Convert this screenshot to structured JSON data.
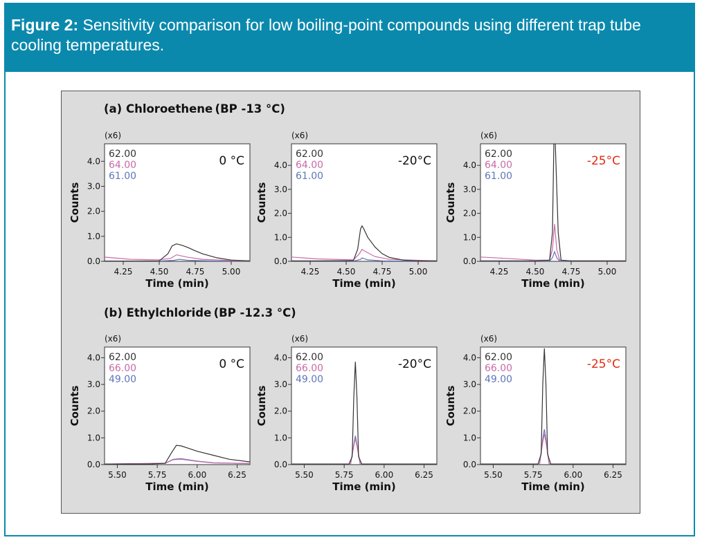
{
  "figure": {
    "label": "Figure 2:",
    "caption": " Sensitivity comparison for low boiling-point compounds using different trap tube cooling temperatures."
  },
  "colors": {
    "header": "#0b89ad",
    "ion1": "#333333",
    "ion2": "#c86aa6",
    "ion3": "#5f76b8",
    "red": "#e02a10"
  },
  "sections": [
    {
      "title": "(a) Chloroethene (BP -13 °C)"
    },
    {
      "title": "(b) Ethylchloride (BP -12.3 °C)"
    }
  ],
  "chart_data": [
    {
      "type": "line",
      "title": "0 °C",
      "title_color": "#111111",
      "scale": "(x6)",
      "xlabel": "Time (min)",
      "ylabel": "Counts",
      "xlim": [
        4.12,
        5.13
      ],
      "ylim": [
        0,
        4.7
      ],
      "xticks": [
        4.25,
        4.5,
        4.75,
        5.0
      ],
      "xticklabels": [
        "4.25",
        "4.50",
        "4.75",
        "5.00"
      ],
      "yticks": [
        0,
        1,
        2,
        3,
        4
      ],
      "yticklabels": [
        "0.0",
        "1.0",
        "2.0",
        "3.0",
        "4.0"
      ],
      "legend": [
        "62.00",
        "64.00",
        "61.00"
      ],
      "series": [
        {
          "name": "62.00",
          "color": "#333333",
          "x": [
            4.12,
            4.3,
            4.5,
            4.56,
            4.59,
            4.62,
            4.66,
            4.7,
            4.75,
            4.8,
            4.9,
            5.0,
            5.13
          ],
          "y": [
            0.01,
            0.01,
            0.02,
            0.3,
            0.62,
            0.7,
            0.64,
            0.55,
            0.42,
            0.3,
            0.14,
            0.05,
            0.02
          ]
        },
        {
          "name": "64.00",
          "color": "#c86aa6",
          "x": [
            4.12,
            4.3,
            4.5,
            4.58,
            4.62,
            4.7,
            4.8,
            5.0,
            5.13
          ],
          "y": [
            0.17,
            0.08,
            0.06,
            0.12,
            0.26,
            0.16,
            0.08,
            0.03,
            0.02
          ]
        },
        {
          "name": "61.00",
          "color": "#5f76b8",
          "x": [
            4.12,
            4.5,
            4.6,
            4.64,
            4.7,
            4.9,
            5.13
          ],
          "y": [
            0.01,
            0.01,
            0.04,
            0.08,
            0.04,
            0.01,
            0.01
          ]
        }
      ]
    },
    {
      "type": "line",
      "title": "-20°C",
      "title_color": "#111111",
      "scale": "(x6)",
      "xlabel": "Time (min)",
      "ylabel": "Counts",
      "xlim": [
        4.12,
        5.13
      ],
      "ylim": [
        0,
        4.9
      ],
      "xticks": [
        4.25,
        4.5,
        4.75,
        5.0
      ],
      "xticklabels": [
        "4.25",
        "4.50",
        "4.75",
        "5.00"
      ],
      "yticks": [
        0,
        1,
        2,
        3,
        4
      ],
      "yticklabels": [
        "0.0",
        "1.0",
        "2.0",
        "3.0",
        "4.0"
      ],
      "legend": [
        "62.00",
        "64.00",
        "61.00"
      ],
      "series": [
        {
          "name": "62.00",
          "color": "#333333",
          "x": [
            4.12,
            4.3,
            4.55,
            4.58,
            4.6,
            4.61,
            4.62,
            4.65,
            4.7,
            4.75,
            4.8,
            4.9,
            5.0,
            5.13
          ],
          "y": [
            0.02,
            0.02,
            0.03,
            0.5,
            1.35,
            1.48,
            1.38,
            1.0,
            0.6,
            0.32,
            0.16,
            0.05,
            0.02,
            0.02
          ]
        },
        {
          "name": "64.00",
          "color": "#c86aa6",
          "x": [
            4.12,
            4.3,
            4.55,
            4.59,
            4.61,
            4.63,
            4.7,
            4.8,
            5.13
          ],
          "y": [
            0.18,
            0.1,
            0.06,
            0.3,
            0.5,
            0.42,
            0.2,
            0.08,
            0.02
          ]
        },
        {
          "name": "61.00",
          "color": "#5f76b8",
          "x": [
            4.12,
            4.55,
            4.6,
            4.61,
            4.65,
            4.75,
            5.13
          ],
          "y": [
            0.01,
            0.01,
            0.08,
            0.14,
            0.06,
            0.02,
            0.01
          ]
        }
      ]
    },
    {
      "type": "line",
      "title": "-25°C",
      "title_color": "#e02a10",
      "scale": "(x6)",
      "xlabel": "Time (min)",
      "ylabel": "Counts",
      "xlim": [
        4.12,
        5.13
      ],
      "ylim": [
        0,
        4.9
      ],
      "xticks": [
        4.25,
        4.5,
        4.75,
        5.0
      ],
      "xticklabels": [
        "4.25",
        "4.50",
        "4.75",
        "5.00"
      ],
      "yticks": [
        0,
        1,
        2,
        3,
        4
      ],
      "yticklabels": [
        "0.0",
        "1.0",
        "2.0",
        "3.0",
        "4.0"
      ],
      "legend": [
        "62.00",
        "64.00",
        "61.00"
      ],
      "series": [
        {
          "name": "62.00",
          "color": "#333333",
          "x": [
            4.12,
            4.5,
            4.6,
            4.62,
            4.63,
            4.64,
            4.66,
            4.68,
            4.75,
            5.13
          ],
          "y": [
            0.02,
            0.02,
            0.05,
            1.2,
            4.9,
            4.9,
            1.2,
            0.05,
            0.02,
            0.02
          ]
        },
        {
          "name": "64.00",
          "color": "#c86aa6",
          "x": [
            4.12,
            4.3,
            4.5,
            4.6,
            4.62,
            4.635,
            4.65,
            4.67,
            4.75,
            5.13
          ],
          "y": [
            0.18,
            0.12,
            0.05,
            0.05,
            0.5,
            1.55,
            0.5,
            0.05,
            0.02,
            0.02
          ]
        },
        {
          "name": "61.00",
          "color": "#5f76b8",
          "x": [
            4.12,
            4.6,
            4.62,
            4.635,
            4.65,
            4.67,
            5.13
          ],
          "y": [
            0.01,
            0.01,
            0.15,
            0.4,
            0.15,
            0.01,
            0.01
          ]
        }
      ]
    },
    {
      "type": "line",
      "title": "0 °C",
      "title_color": "#111111",
      "scale": "(x6)",
      "xlabel": "Time (min)",
      "ylabel": "Counts",
      "xlim": [
        5.42,
        6.33
      ],
      "ylim": [
        0,
        4.4
      ],
      "xticks": [
        5.5,
        5.75,
        6.0,
        6.25
      ],
      "xticklabels": [
        "5.50",
        "5.75",
        "6.00",
        "6.25"
      ],
      "yticks": [
        0,
        1,
        2,
        3,
        4
      ],
      "yticklabels": [
        "0.0",
        "1.0",
        "2.0",
        "3.0",
        "4.0"
      ],
      "legend": [
        "62.00",
        "66.00",
        "49.00"
      ],
      "series": [
        {
          "name": "62.00",
          "color": "#333333",
          "x": [
            5.42,
            5.7,
            5.8,
            5.84,
            5.87,
            5.9,
            5.95,
            6.0,
            6.1,
            6.2,
            6.33
          ],
          "y": [
            0.02,
            0.02,
            0.05,
            0.45,
            0.72,
            0.7,
            0.6,
            0.5,
            0.35,
            0.2,
            0.1
          ]
        },
        {
          "name": "66.00",
          "color": "#c86aa6",
          "x": [
            5.42,
            5.8,
            5.85,
            5.9,
            6.0,
            6.1,
            6.33
          ],
          "y": [
            0.02,
            0.05,
            0.18,
            0.2,
            0.12,
            0.06,
            0.04
          ]
        },
        {
          "name": "49.00",
          "color": "#5f76b8",
          "x": [
            5.42,
            5.8,
            5.85,
            5.9,
            6.0,
            6.1,
            6.33
          ],
          "y": [
            0.02,
            0.05,
            0.2,
            0.22,
            0.13,
            0.07,
            0.04
          ]
        }
      ]
    },
    {
      "type": "line",
      "title": "-20°C",
      "title_color": "#111111",
      "scale": "(x6)",
      "xlabel": "Time (min)",
      "ylabel": "Counts",
      "xlim": [
        5.42,
        6.33
      ],
      "ylim": [
        0,
        4.4
      ],
      "xticks": [
        5.5,
        5.75,
        6.0,
        6.25
      ],
      "xticklabels": [
        "5.50",
        "5.75",
        "6.00",
        "6.25"
      ],
      "yticks": [
        0,
        1,
        2,
        3,
        4
      ],
      "yticklabels": [
        "0.0",
        "1.0",
        "2.0",
        "3.0",
        "4.0"
      ],
      "legend": [
        "62.00",
        "66.00",
        "49.00"
      ],
      "series": [
        {
          "name": "62.00",
          "color": "#333333",
          "x": [
            5.42,
            5.78,
            5.8,
            5.81,
            5.82,
            5.83,
            5.84,
            5.86,
            6.33
          ],
          "y": [
            0.02,
            0.02,
            0.3,
            2.5,
            3.85,
            2.5,
            0.3,
            0.02,
            0.02
          ]
        },
        {
          "name": "66.00",
          "color": "#c86aa6",
          "x": [
            5.42,
            5.79,
            5.81,
            5.82,
            5.83,
            5.85,
            6.33
          ],
          "y": [
            0.02,
            0.02,
            0.7,
            0.98,
            0.7,
            0.02,
            0.02
          ]
        },
        {
          "name": "49.00",
          "color": "#5f76b8",
          "x": [
            5.42,
            5.79,
            5.81,
            5.82,
            5.83,
            5.85,
            6.33
          ],
          "y": [
            0.02,
            0.02,
            0.75,
            1.08,
            0.75,
            0.02,
            0.02
          ]
        }
      ]
    },
    {
      "type": "line",
      "title": "-25°C",
      "title_color": "#e02a10",
      "scale": "(x6)",
      "xlabel": "Time (min)",
      "ylabel": "Counts",
      "xlim": [
        5.42,
        6.33
      ],
      "ylim": [
        0,
        4.4
      ],
      "xticks": [
        5.5,
        5.75,
        6.0,
        6.25
      ],
      "xticklabels": [
        "5.50",
        "5.75",
        "6.00",
        "6.25"
      ],
      "yticks": [
        0,
        1,
        2,
        3,
        4
      ],
      "yticklabels": [
        "0.0",
        "1.0",
        "2.0",
        "3.0",
        "4.0"
      ],
      "legend": [
        "62.00",
        "66.00",
        "49.00"
      ],
      "series": [
        {
          "name": "62.00",
          "color": "#333333",
          "x": [
            5.42,
            5.78,
            5.8,
            5.81,
            5.82,
            5.83,
            5.84,
            5.86,
            6.33
          ],
          "y": [
            0.02,
            0.02,
            0.4,
            3.0,
            4.35,
            3.0,
            0.4,
            0.02,
            0.02
          ]
        },
        {
          "name": "66.00",
          "color": "#c86aa6",
          "x": [
            5.42,
            5.79,
            5.81,
            5.82,
            5.83,
            5.85,
            6.33
          ],
          "y": [
            0.02,
            0.02,
            0.85,
            1.15,
            0.85,
            0.02,
            0.02
          ]
        },
        {
          "name": "49.00",
          "color": "#5f76b8",
          "x": [
            5.42,
            5.79,
            5.81,
            5.82,
            5.83,
            5.85,
            6.33
          ],
          "y": [
            0.02,
            0.02,
            0.95,
            1.32,
            0.95,
            0.02,
            0.02
          ]
        }
      ]
    }
  ]
}
